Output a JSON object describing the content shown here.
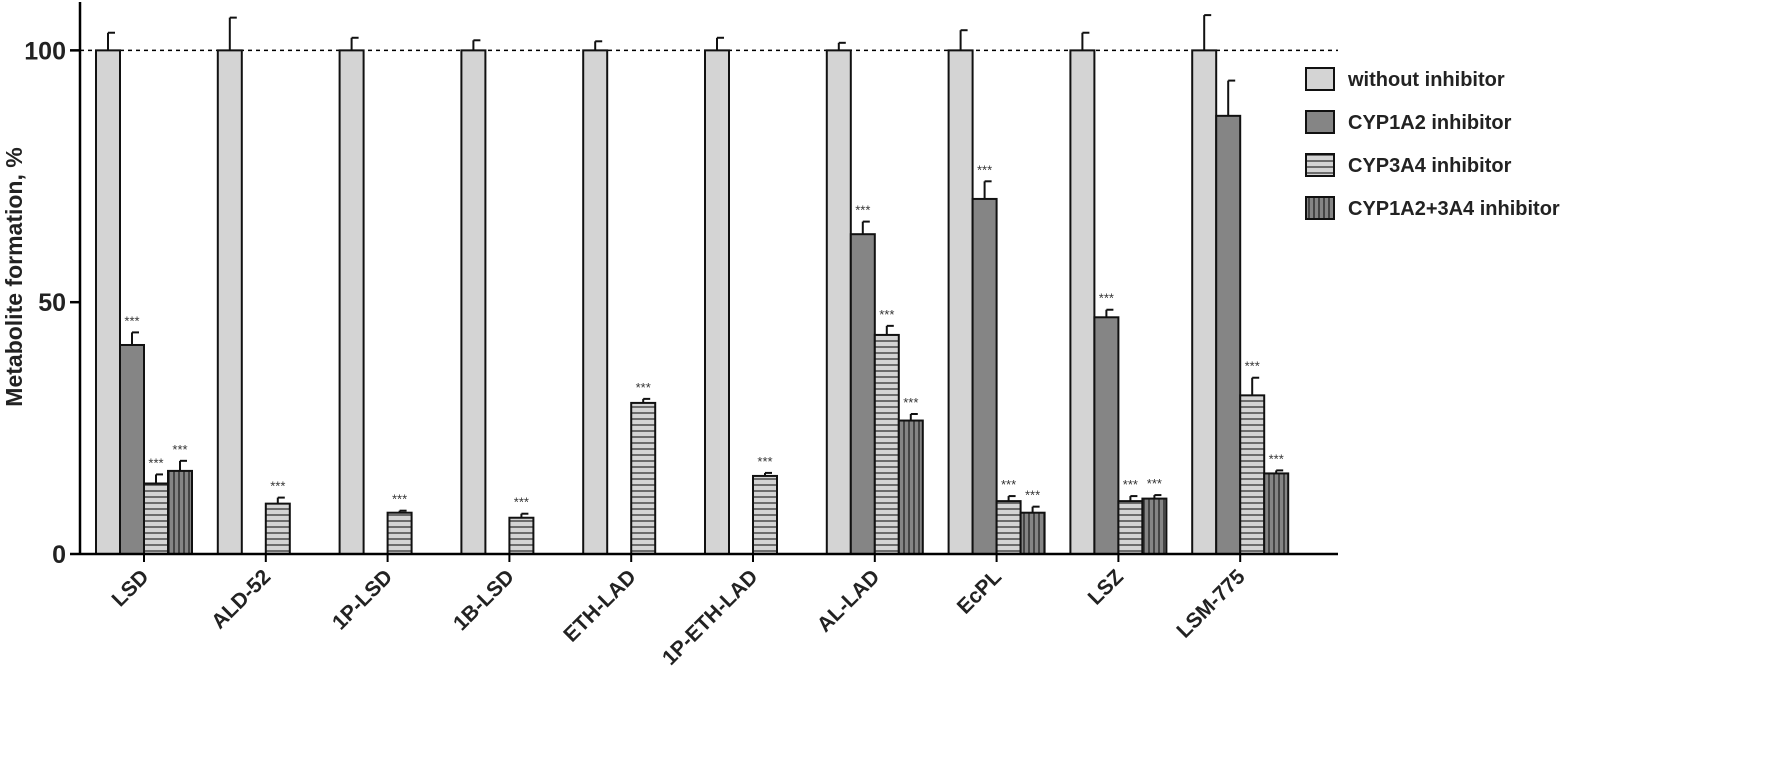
{
  "chart_data": {
    "type": "bar",
    "title": "",
    "xlabel": "",
    "ylabel": "Metabolite formation, %",
    "ylim": [
      0,
      110
    ],
    "yticks": [
      0,
      50,
      100
    ],
    "reference_line": 100,
    "legend_position": "right",
    "categories": [
      "LSD",
      "ALD-52",
      "1P-LSD",
      "1B-LSD",
      "ETH-LAD",
      "1P-ETH-LAD",
      "AL-LAD",
      "EcPL",
      "LSZ",
      "LSM-775"
    ],
    "series": [
      {
        "name": "without inhibitor",
        "pattern": "solid",
        "color": "#d4d4d4",
        "values": [
          100,
          100,
          100,
          100,
          100,
          100,
          100,
          100,
          100,
          100
        ],
        "errors": [
          3.5,
          6.5,
          2.5,
          2,
          1.8,
          2.5,
          1.5,
          4,
          3.5,
          7
        ],
        "significance": [
          "",
          "",
          "",
          "",
          "",
          "",
          "",
          "",
          "",
          ""
        ]
      },
      {
        "name": "CYP1A2 inhibitor",
        "pattern": "solid",
        "color": "#858585",
        "values": [
          41.5,
          null,
          null,
          null,
          null,
          null,
          63.5,
          70.5,
          47,
          87
        ],
        "errors": [
          2.5,
          null,
          null,
          null,
          null,
          null,
          2.5,
          3.5,
          1.5,
          7
        ],
        "significance": [
          "***",
          "",
          "",
          "",
          "",
          "",
          "***",
          "***",
          "***",
          ""
        ]
      },
      {
        "name": "CYP3A4 inhibitor",
        "pattern": "horizontal-lines",
        "color": "#d4d4d4",
        "values": [
          14,
          10,
          8.2,
          7.2,
          30,
          15.5,
          43.5,
          10.5,
          10.5,
          31.5
        ],
        "errors": [
          1.8,
          1.2,
          0.4,
          0.8,
          0.8,
          0.6,
          1.8,
          1,
          1,
          3.5
        ],
        "significance": [
          "***",
          "***",
          "***",
          "***",
          "***",
          "***",
          "***",
          "***",
          "***",
          "***"
        ]
      },
      {
        "name": "CYP1A2+3A4 inhibitor",
        "pattern": "vertical-lines",
        "color": "#858585",
        "values": [
          16.5,
          null,
          null,
          null,
          null,
          null,
          26.5,
          8.2,
          11,
          16
        ],
        "errors": [
          2,
          null,
          null,
          null,
          null,
          null,
          1.3,
          1.2,
          0.7,
          0.6
        ],
        "significance": [
          "***",
          "",
          "",
          "",
          "",
          "",
          "***",
          "***",
          "***",
          "***"
        ]
      }
    ]
  }
}
